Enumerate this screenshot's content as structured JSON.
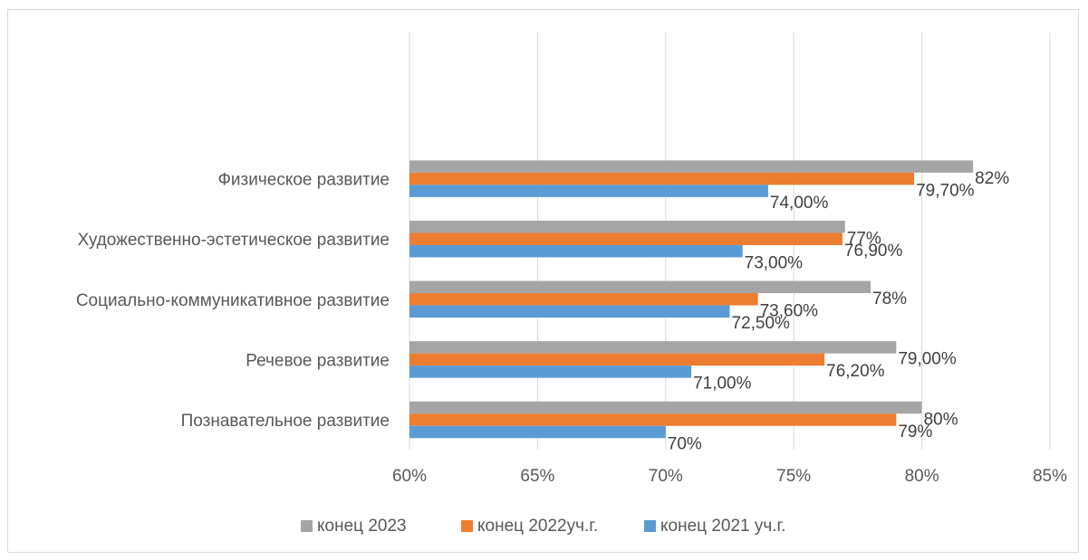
{
  "chart_data": {
    "type": "bar",
    "orientation": "horizontal",
    "title": "",
    "xlabel": "",
    "ylabel": "",
    "xlim": [
      0.6,
      0.85
    ],
    "grid": true,
    "legend_position": "bottom",
    "categories": [
      "Познавательное развитие",
      "Речевое развитие",
      "Социально-коммуникативное развитие",
      "Художественно-эстетическое развитие",
      "Физическое развитие"
    ],
    "x_ticks": [
      {
        "value": 0.6,
        "label": "60%"
      },
      {
        "value": 0.65,
        "label": "65%"
      },
      {
        "value": 0.7,
        "label": "70%"
      },
      {
        "value": 0.75,
        "label": "75%"
      },
      {
        "value": 0.8,
        "label": "80%"
      },
      {
        "value": 0.85,
        "label": "85%"
      }
    ],
    "series": [
      {
        "name": "конец 2023",
        "color": "#a5a5a5",
        "values": [
          0.8,
          0.79,
          0.78,
          0.77,
          0.82
        ],
        "labels": [
          "80%",
          "79,00%",
          "78%",
          "77%",
          "82%"
        ]
      },
      {
        "name": "конец 2022уч.г.",
        "color": "#ed7d31",
        "values": [
          0.79,
          0.762,
          0.736,
          0.769,
          0.797
        ],
        "labels": [
          "79%",
          "76,20%",
          "73,60%",
          "76,90%",
          "79,70%"
        ]
      },
      {
        "name": "конец 2021 уч.г.",
        "color": "#5b9bd5",
        "values": [
          0.7,
          0.71,
          0.725,
          0.73,
          0.74
        ],
        "labels": [
          "70%",
          "71,00%",
          "72,50%",
          "73,00%",
          "74,00%"
        ]
      }
    ],
    "legend_order": [
      0,
      1,
      2
    ]
  }
}
